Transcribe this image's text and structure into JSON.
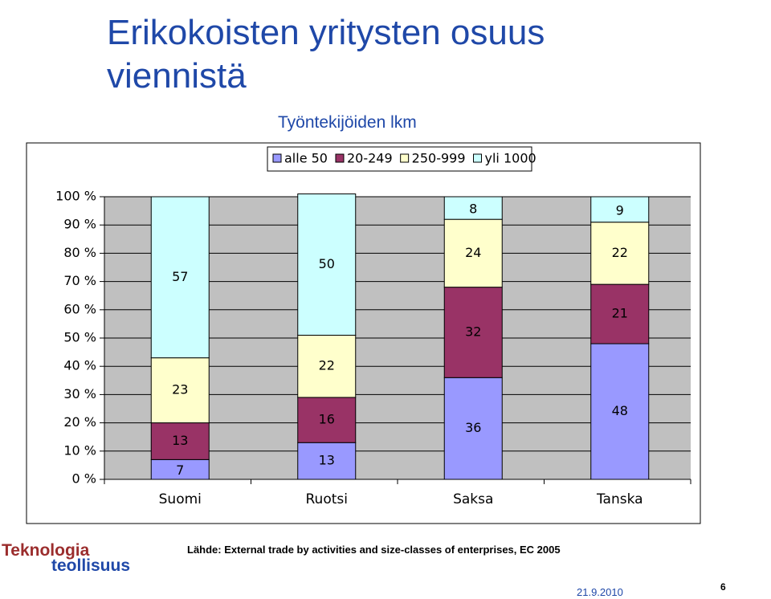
{
  "slide": {
    "title": "Erikokoisten yritysten osuus viennistä",
    "source": "Lähde: External trade by activities and size-classes of enterprises, EC 2005",
    "logo": [
      "Teknologia",
      "teollisuus"
    ],
    "date": "21.9.2010",
    "page": "6"
  },
  "chart_data": {
    "type": "bar",
    "stacked": true,
    "subtitle": "Työntekijöiden lkm",
    "categories": [
      "Suomi",
      "Ruotsi",
      "Saksa",
      "Tanska"
    ],
    "series": [
      {
        "name": "alle 50",
        "color": "#9999ff",
        "values": [
          7,
          13,
          36,
          48
        ]
      },
      {
        "name": "20-249",
        "color": "#993366",
        "values": [
          13,
          16,
          32,
          21
        ]
      },
      {
        "name": "250-999",
        "color": "#ffffcc",
        "values": [
          23,
          22,
          24,
          22
        ]
      },
      {
        "name": "yli 1000",
        "color": "#ccffff",
        "values": [
          57,
          50,
          8,
          9
        ]
      }
    ],
    "ylim": [
      0,
      100
    ],
    "yticks": [
      {
        "value": 0,
        "label": "0 %"
      },
      {
        "value": 10,
        "label": "10 %"
      },
      {
        "value": 20,
        "label": "20 %"
      },
      {
        "value": 30,
        "label": "30 %"
      },
      {
        "value": 40,
        "label": "40 %"
      },
      {
        "value": 50,
        "label": "50 %"
      },
      {
        "value": 60,
        "label": "60 %"
      },
      {
        "value": 70,
        "label": "70 %"
      },
      {
        "value": 80,
        "label": "80 %"
      },
      {
        "value": 90,
        "label": "90 %"
      },
      {
        "value": 100,
        "label": "100 %"
      }
    ],
    "grid": true,
    "plot_background": "#c0c0c0",
    "legend": "top"
  }
}
